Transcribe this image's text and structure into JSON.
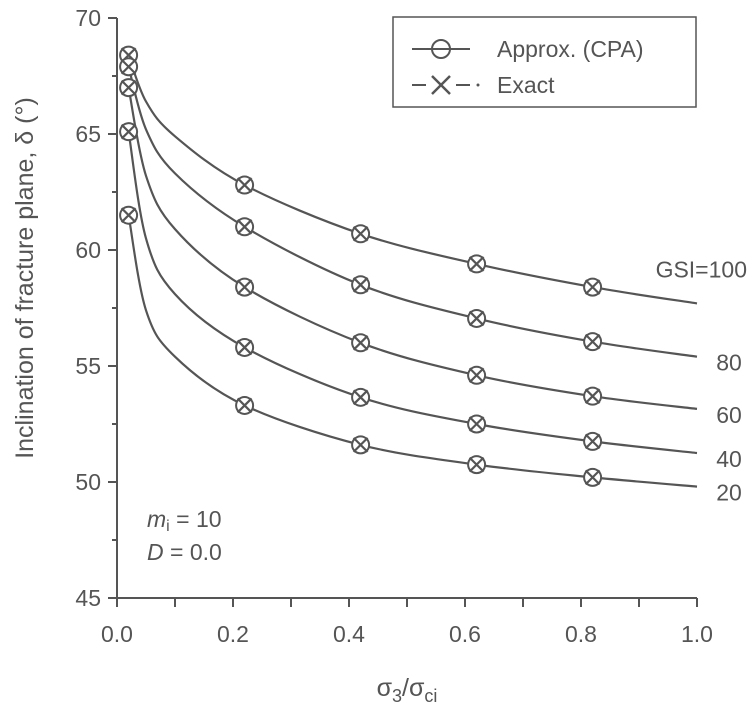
{
  "chart_data": {
    "type": "line",
    "xlabel": "σ3/σci",
    "ylabel": "Inclination of fracture plane, δ (°)",
    "xlim": [
      0.0,
      1.0
    ],
    "ylim": [
      45,
      70
    ],
    "xticks": [
      0.0,
      0.2,
      0.4,
      0.6,
      0.8,
      1.0
    ],
    "xtick_labels": [
      "0.0",
      "0.2",
      "0.4",
      "0.6",
      "0.8",
      "1.0"
    ],
    "yticks": [
      45,
      50,
      55,
      60,
      65,
      70
    ],
    "ytick_labels": [
      "45",
      "50",
      "55",
      "60",
      "65",
      "70"
    ],
    "grid": false,
    "legend": {
      "placement": "top-right",
      "entries": [
        {
          "label": "Approx. (CPA)",
          "style": "line-circle"
        },
        {
          "label": "Exact",
          "style": "dash-cross"
        }
      ]
    },
    "annotations": {
      "mi_label": "m",
      "mi_sub": "i",
      "mi_value": " = 10",
      "d_label": "D",
      "d_value": " = 0.0"
    },
    "series": [
      {
        "name": "GSI=100",
        "curve": [
          [
            0.02,
            68.4
          ],
          [
            0.05,
            66.4
          ],
          [
            0.1,
            64.9
          ],
          [
            0.22,
            62.8
          ],
          [
            0.42,
            60.7
          ],
          [
            0.62,
            59.4
          ],
          [
            0.82,
            58.4
          ],
          [
            1.0,
            57.7
          ]
        ],
        "markers": [
          [
            0.02,
            68.4
          ],
          [
            0.22,
            62.8
          ],
          [
            0.42,
            60.7
          ],
          [
            0.62,
            59.4
          ],
          [
            0.82,
            58.4
          ]
        ]
      },
      {
        "name": "80",
        "curve": [
          [
            0.02,
            67.9
          ],
          [
            0.05,
            65.2
          ],
          [
            0.1,
            63.3
          ],
          [
            0.22,
            61.0
          ],
          [
            0.42,
            58.5
          ],
          [
            0.62,
            57.05
          ],
          [
            0.82,
            56.05
          ],
          [
            1.0,
            55.4
          ]
        ],
        "markers": [
          [
            0.02,
            67.9
          ],
          [
            0.22,
            61.0
          ],
          [
            0.42,
            58.5
          ],
          [
            0.62,
            57.05
          ],
          [
            0.82,
            56.05
          ]
        ]
      },
      {
        "name": "60",
        "curve": [
          [
            0.02,
            67.0
          ],
          [
            0.05,
            63.2
          ],
          [
            0.1,
            60.9
          ],
          [
            0.22,
            58.4
          ],
          [
            0.42,
            56.0
          ],
          [
            0.62,
            54.6
          ],
          [
            0.82,
            53.7
          ],
          [
            1.0,
            53.15
          ]
        ],
        "markers": [
          [
            0.02,
            67.0
          ],
          [
            0.22,
            58.4
          ],
          [
            0.42,
            56.0
          ],
          [
            0.62,
            54.6
          ],
          [
            0.82,
            53.7
          ]
        ]
      },
      {
        "name": "40",
        "curve": [
          [
            0.02,
            65.1
          ],
          [
            0.05,
            60.5
          ],
          [
            0.1,
            58.1
          ],
          [
            0.22,
            55.8
          ],
          [
            0.42,
            53.65
          ],
          [
            0.62,
            52.5
          ],
          [
            0.82,
            51.75
          ],
          [
            1.0,
            51.25
          ]
        ],
        "markers": [
          [
            0.02,
            65.1
          ],
          [
            0.22,
            55.8
          ],
          [
            0.42,
            53.65
          ],
          [
            0.62,
            52.5
          ],
          [
            0.82,
            51.75
          ]
        ]
      },
      {
        "name": "20",
        "curve": [
          [
            0.02,
            61.5
          ],
          [
            0.05,
            57.4
          ],
          [
            0.1,
            55.4
          ],
          [
            0.22,
            53.3
          ],
          [
            0.42,
            51.6
          ],
          [
            0.62,
            50.75
          ],
          [
            0.82,
            50.2
          ],
          [
            1.0,
            49.8
          ]
        ],
        "markers": [
          [
            0.02,
            61.5
          ],
          [
            0.22,
            53.3
          ],
          [
            0.42,
            51.6
          ],
          [
            0.62,
            50.75
          ],
          [
            0.82,
            50.2
          ]
        ]
      }
    ]
  }
}
